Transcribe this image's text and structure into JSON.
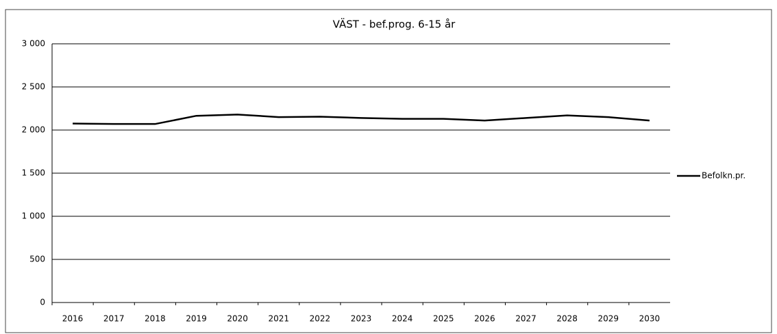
{
  "chart_data": {
    "type": "line",
    "title": "VÄST - bef.prog. 6-15 år",
    "categories": [
      "2016",
      "2017",
      "2018",
      "2019",
      "2020",
      "2021",
      "2022",
      "2023",
      "2024",
      "2025",
      "2026",
      "2027",
      "2028",
      "2029",
      "2030"
    ],
    "series": [
      {
        "name": "Befolkn.pr.",
        "color": "#000000",
        "values": [
          2075,
          2070,
          2070,
          2165,
          2180,
          2150,
          2155,
          2140,
          2130,
          2130,
          2110,
          2140,
          2170,
          2150,
          2110
        ]
      }
    ],
    "ylim": [
      0,
      3000
    ],
    "yticks": [
      0,
      500,
      {
        "value": 1000,
        "label": "1 000"
      },
      {
        "value": 1500,
        "label": "1 500"
      },
      {
        "value": 2000,
        "label": "2 000"
      },
      {
        "value": 2500,
        "label": "2 500"
      },
      {
        "value": 3000,
        "label": "3 000"
      }
    ],
    "grid": true,
    "legend": "right"
  }
}
